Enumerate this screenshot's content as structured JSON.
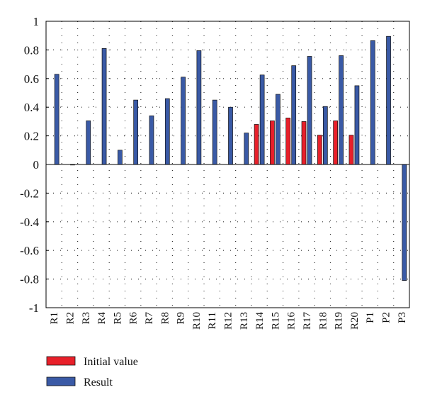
{
  "chart_data": {
    "type": "bar",
    "categories": [
      "R1",
      "R2",
      "R3",
      "R4",
      "R5",
      "R6",
      "R7",
      "R8",
      "R9",
      "R10",
      "R11",
      "R12",
      "R13",
      "R14",
      "R15",
      "R16",
      "R17",
      "R18",
      "R19",
      "R20",
      "P1",
      "P2",
      "P3"
    ],
    "series": [
      {
        "name": "Initial value",
        "color": "#e8202a",
        "values": [
          null,
          null,
          null,
          null,
          null,
          null,
          null,
          null,
          null,
          null,
          null,
          null,
          null,
          0.28,
          0.305,
          0.325,
          0.3,
          0.205,
          0.305,
          0.205,
          null,
          null,
          null
        ]
      },
      {
        "name": "Result",
        "color": "#3a5aa6",
        "values": [
          0.63,
          0.0,
          0.305,
          0.81,
          0.1,
          0.45,
          0.34,
          0.46,
          0.61,
          0.795,
          0.45,
          0.4,
          0.22,
          0.625,
          0.49,
          0.69,
          0.755,
          0.405,
          0.76,
          0.55,
          0.865,
          0.895,
          -0.81
        ]
      }
    ],
    "ylim": [
      -1,
      1
    ],
    "yticks": [
      "1",
      "0.8",
      "0.6",
      "0.4",
      "0.2",
      "0",
      "-0.2",
      "-0.4",
      "-0.6",
      "-0.8",
      "-1"
    ],
    "grid": true,
    "legend_position": "bottom-left"
  }
}
